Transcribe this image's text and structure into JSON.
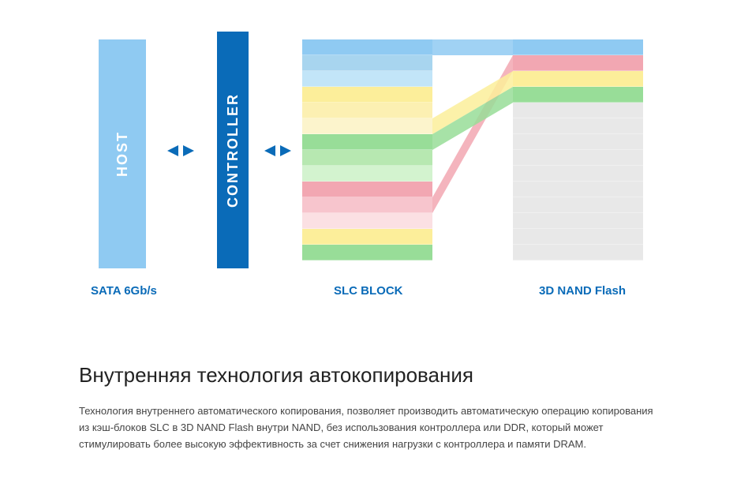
{
  "diagram": {
    "host": {
      "label": "HOST",
      "color": "#8fcaf2",
      "bottom_label": "SATA 6Gb/s"
    },
    "controller": {
      "label": "CONTROLLER",
      "color": "#0a6bb8",
      "bottom_label": ""
    },
    "arrow_color": "#0a6bb8",
    "label_color": "#0a6bb8",
    "slc": {
      "bottom_label": "SLC BLOCK",
      "stripes": [
        "#8fcaf2",
        "#a8d5ef",
        "#c2e5f8",
        "#fcee9a",
        "#fcf0b2",
        "#fcf4cc",
        "#98dd98",
        "#b7e8b1",
        "#d3f3cf",
        "#f2a7b2",
        "#f7c5cd",
        "#fbe0e3",
        "#fcee9a",
        "#98dd98"
      ]
    },
    "nand": {
      "bottom_label": "3D NAND Flash",
      "stripes": [
        "#8fcaf2",
        "#f2a7b2",
        "#fcee9a",
        "#98dd98",
        "#e8e8e8",
        "#e8e8e8",
        "#e8e8e8",
        "#e8e8e8",
        "#e8e8e8",
        "#e8e8e8",
        "#e8e8e8",
        "#e8e8e8",
        "#e8e8e8",
        "#e8e8e8"
      ]
    },
    "flow_colors": [
      "#8fcaf2",
      "#f2a7b2",
      "#fcee9a",
      "#98dd98"
    ],
    "flow_src_y": [
      0,
      200,
      100,
      120
    ],
    "flow_dst_y": [
      0,
      20,
      40,
      60
    ],
    "background": "#ffffff",
    "stripe_height": 20,
    "flow_width": 102
  },
  "text": {
    "heading": "Внутренняя технология автокопирования",
    "paragraph": "Технология внутреннего автоматического копирования, позволяет производить автоматическую операцию копирования из кэш-блоков SLC в 3D NAND Flash внутри NAND, без использования контроллера или DDR, который может стимулировать более высокую эффективность за счет снижения нагрузки с контроллера и памяти DRAM."
  }
}
